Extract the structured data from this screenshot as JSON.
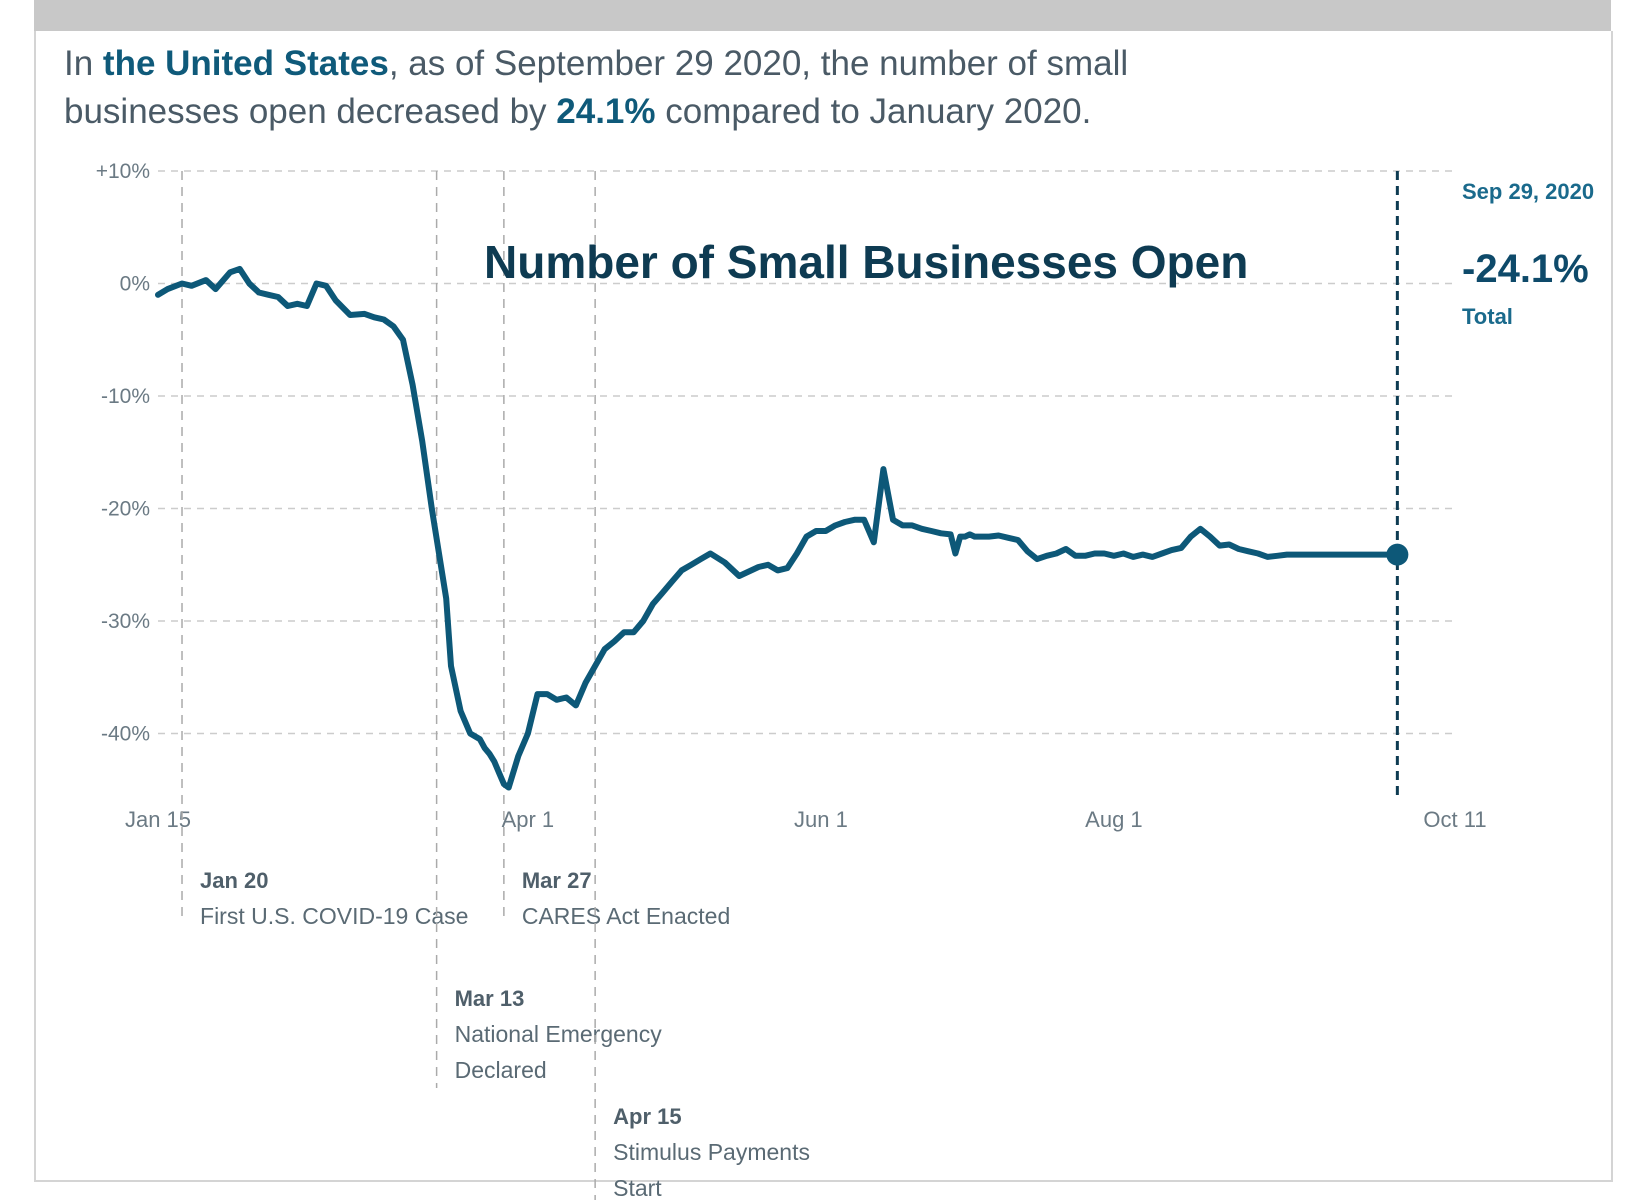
{
  "header": {
    "prefix": "In ",
    "location": "the United States",
    "middle": ", as of September 29 2020, the number of small businesses open decreased by ",
    "change": "24.1%",
    "suffix": " compared to January 2020."
  },
  "colors": {
    "line": "#0d5878",
    "accent": "#0f5a7a",
    "grid": "#cccccc"
  },
  "chart_data": {
    "type": "line",
    "title": "Number of Small Businesses Open",
    "xlabel": "",
    "ylabel": "",
    "ylim": [
      -45,
      10
    ],
    "yticks": [
      10,
      0,
      -10,
      -20,
      -30,
      -40
    ],
    "ytick_labels": [
      "+10%",
      "0%",
      "-10%",
      "-20%",
      "-30%",
      "-40%"
    ],
    "xlim_day": [
      15,
      285
    ],
    "xticks": [
      {
        "day": 15,
        "label": "Jan 15"
      },
      {
        "day": 92,
        "label": "Apr 1"
      },
      {
        "day": 153,
        "label": "Jun 1"
      },
      {
        "day": 214,
        "label": "Aug 1"
      },
      {
        "day": 285,
        "label": "Oct 11"
      }
    ],
    "series": [
      {
        "name": "Number of Small Businesses Open",
        "x_day": [
          15,
          17,
          20,
          22,
          25,
          27,
          30,
          32,
          34,
          36,
          38,
          40,
          42,
          44,
          46,
          48,
          50,
          52,
          55,
          58,
          60,
          62,
          64,
          66,
          68,
          70,
          72,
          75,
          76,
          78,
          80,
          82,
          83,
          84,
          85,
          86,
          87,
          88,
          90,
          92,
          94,
          96,
          98,
          100,
          102,
          104,
          106,
          108,
          110,
          112,
          114,
          116,
          118,
          120,
          122,
          124,
          126,
          128,
          130,
          133,
          136,
          140,
          142,
          144,
          146,
          148,
          150,
          152,
          154,
          156,
          158,
          160,
          162,
          164,
          166,
          168,
          170,
          172,
          174,
          176,
          178,
          180,
          181,
          182,
          183,
          184,
          185,
          186,
          188,
          190,
          192,
          194,
          196,
          198,
          200,
          202,
          204,
          206,
          208,
          210,
          212,
          214,
          216,
          218,
          220,
          222,
          224,
          226,
          228,
          230,
          232,
          234,
          236,
          238,
          240,
          242,
          244,
          246,
          248,
          250,
          252,
          254,
          256,
          258,
          260,
          262,
          264,
          266,
          268,
          270,
          272,
          274
        ],
        "values": [
          -1,
          -0.5,
          0,
          -0.2,
          0.3,
          -0.5,
          1,
          1.3,
          0,
          -0.8,
          -1,
          -1.2,
          -2,
          -1.8,
          -2,
          0,
          -0.2,
          -1.5,
          -2.8,
          -2.7,
          -3,
          -3.2,
          -3.8,
          -5,
          -9,
          -14,
          -20,
          -28,
          -34,
          -38,
          -40,
          -40.5,
          -41.3,
          -41.8,
          -42.5,
          -43.5,
          -44.5,
          -44.8,
          -42,
          -40,
          -36.5,
          -36.5,
          -37,
          -36.8,
          -37.5,
          -35.5,
          -34,
          -32.5,
          -31.8,
          -31,
          -31,
          -30,
          -28.5,
          -27.5,
          -26.5,
          -25.5,
          -25,
          -24.5,
          -24,
          -24.8,
          -26,
          -25.2,
          -25,
          -25.5,
          -25.3,
          -24,
          -22.5,
          -22,
          -22,
          -21.5,
          -21.2,
          -21,
          -21,
          -23,
          -16.5,
          -21,
          -21.5,
          -21.5,
          -21.8,
          -22,
          -22.2,
          -22.3,
          -24,
          -22.5,
          -22.5,
          -22.3,
          -22.5,
          -22.5,
          -22.5,
          -22.4,
          -22.6,
          -22.8,
          -23.8,
          -24.5,
          -24.2,
          -24,
          -23.6,
          -24.2,
          -24.2,
          -24,
          -24,
          -24.2,
          -24,
          -24.3,
          -24.1,
          -24.3,
          -24,
          -23.7,
          -23.5,
          -22.5,
          -21.8,
          -22.5,
          -23.3,
          -23.2,
          -23.6,
          -23.8,
          -24,
          -24.3,
          -24.2,
          -24.1,
          -24.1,
          -24.1,
          -24.1,
          -24.1,
          -24.1,
          -24.1,
          -24.1,
          -24.1,
          -24.1,
          -24.1,
          -24.1,
          -24.1
        ]
      }
    ],
    "annotations": [
      {
        "day": 20,
        "date": "Jan 20",
        "lines": [
          "First U.S. COVID-19 Case"
        ]
      },
      {
        "day": 73,
        "date": "Mar 13",
        "lines": [
          "National Emergency",
          "Declared"
        ]
      },
      {
        "day": 87,
        "date": "Mar 27",
        "lines": [
          "CARES Act Enacted"
        ]
      },
      {
        "day": 106,
        "date": "Apr 15",
        "lines": [
          "Stimulus Payments",
          "Start"
        ]
      }
    ],
    "end_point": {
      "day": 273,
      "date_label": "Sep 29, 2020",
      "value": -24.1,
      "value_label": "-24.1%",
      "caption": "Total"
    }
  }
}
